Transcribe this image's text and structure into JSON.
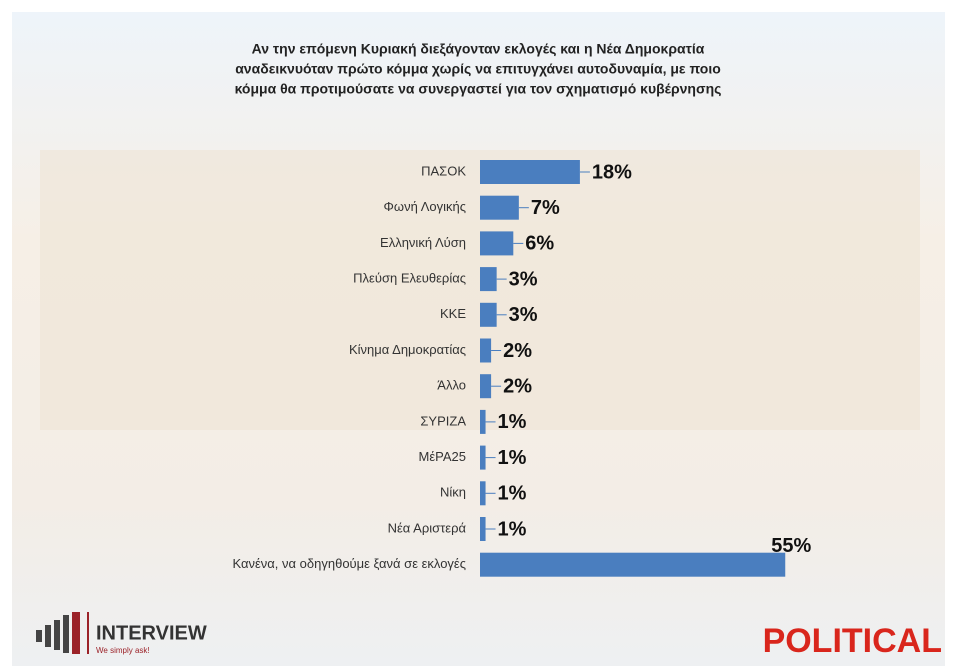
{
  "chart_data": {
    "type": "bar",
    "orientation": "horizontal",
    "title": [
      "Αν την επόμενη Κυριακή διεξάγονταν εκλογές και η Νέα Δημοκρατία",
      "αναδεικνυόταν πρώτο κόμμα χωρίς να επιτυγχάνει αυτοδυναμία, με ποιο",
      "κόμμα θα προτιμούσατε να συνεργαστεί για τον σχηματισμό κυβέρνησης"
    ],
    "categories": [
      "ΠΑΣΟΚ",
      "Φωνή Λογικής",
      "Ελληνική Λύση",
      "Πλεύση Ελευθερίας",
      "ΚΚΕ",
      "Κίνημα Δημοκρατίας",
      "Άλλο",
      "ΣΥΡΙΖΑ",
      "ΜέΡΑ25",
      "Νίκη",
      "Νέα Αριστερά",
      "Κανένα, να οδηγηθούμε ξανά σε εκλογές"
    ],
    "values": [
      18,
      7,
      6,
      3,
      3,
      2,
      2,
      1,
      1,
      1,
      1,
      55
    ],
    "value_labels": [
      "18%",
      "7%",
      "6%",
      "3%",
      "3%",
      "2%",
      "2%",
      "1%",
      "1%",
      "1%",
      "1%",
      "55%"
    ],
    "color": "#4a7ebf",
    "xlim": [
      0,
      80
    ],
    "footer_left": "INTERVIEW",
    "footer_left_tagline": "We simply ask!",
    "footer_right": "POLITICAL"
  }
}
